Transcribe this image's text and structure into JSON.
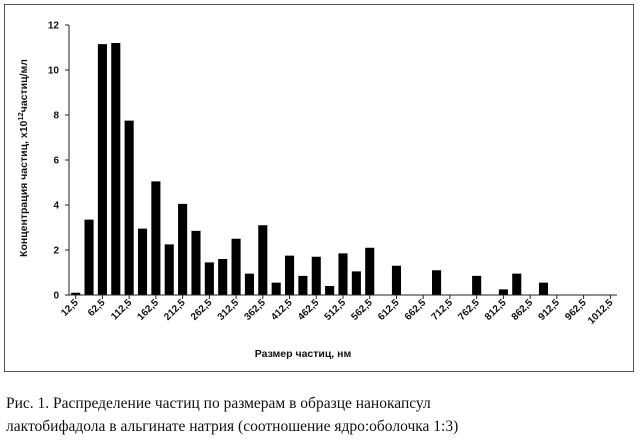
{
  "chart_data": {
    "type": "bar",
    "xlabel": "Размер частиц, нм",
    "ylabel_main": "Концентрация частиц, x10",
    "ylabel_sup": "12",
    "ylabel_end": "частиц/мл",
    "ylim": [
      0,
      12
    ],
    "yticks": [
      "0",
      "2",
      "4",
      "6",
      "8",
      "10",
      "12"
    ],
    "grid": false,
    "legend": "none",
    "bar_color": "#000000",
    "x_tick_labels": [
      "12,5",
      "62,5",
      "112,5",
      "162,5",
      "212,5",
      "262,5",
      "312,5",
      "362,5",
      "412,5",
      "462,5",
      "512,5",
      "562,5",
      "612,5",
      "662,5",
      "712,5",
      "762,5",
      "812,5",
      "862,5",
      "912,5",
      "962,5",
      "1012,5"
    ],
    "bin_width": 25,
    "x_start": 12.5,
    "bins": [
      {
        "x": 12.5,
        "y": 0.1
      },
      {
        "x": 37.5,
        "y": 3.35
      },
      {
        "x": 62.5,
        "y": 11.15
      },
      {
        "x": 87.5,
        "y": 11.2
      },
      {
        "x": 112.5,
        "y": 7.75
      },
      {
        "x": 137.5,
        "y": 2.95
      },
      {
        "x": 162.5,
        "y": 5.05
      },
      {
        "x": 187.5,
        "y": 2.25
      },
      {
        "x": 212.5,
        "y": 4.05
      },
      {
        "x": 237.5,
        "y": 2.85
      },
      {
        "x": 262.5,
        "y": 1.45
      },
      {
        "x": 287.5,
        "y": 1.6
      },
      {
        "x": 312.5,
        "y": 2.5
      },
      {
        "x": 337.5,
        "y": 0.95
      },
      {
        "x": 362.5,
        "y": 3.1
      },
      {
        "x": 387.5,
        "y": 0.55
      },
      {
        "x": 412.5,
        "y": 1.75
      },
      {
        "x": 437.5,
        "y": 0.85
      },
      {
        "x": 462.5,
        "y": 1.7
      },
      {
        "x": 487.5,
        "y": 0.4
      },
      {
        "x": 512.5,
        "y": 1.85
      },
      {
        "x": 537.5,
        "y": 1.05
      },
      {
        "x": 562.5,
        "y": 2.1
      },
      {
        "x": 587.5,
        "y": 0
      },
      {
        "x": 612.5,
        "y": 1.3
      },
      {
        "x": 637.5,
        "y": 0
      },
      {
        "x": 662.5,
        "y": 0
      },
      {
        "x": 687.5,
        "y": 1.1
      },
      {
        "x": 712.5,
        "y": 0
      },
      {
        "x": 737.5,
        "y": 0
      },
      {
        "x": 762.5,
        "y": 0.85
      },
      {
        "x": 787.5,
        "y": 0
      },
      {
        "x": 812.5,
        "y": 0.25
      },
      {
        "x": 837.5,
        "y": 0.95
      },
      {
        "x": 862.5,
        "y": 0
      },
      {
        "x": 887.5,
        "y": 0.55
      },
      {
        "x": 912.5,
        "y": 0
      },
      {
        "x": 937.5,
        "y": 0
      },
      {
        "x": 962.5,
        "y": 0
      },
      {
        "x": 987.5,
        "y": 0
      },
      {
        "x": 1012.5,
        "y": 0
      }
    ]
  },
  "caption": {
    "line1": "Рис. 1. Распределение частиц по размерам в образце нанокапсул",
    "line2": "лактобифадола в альгинате натрия (соотношение ядро:оболочка 1:3)"
  }
}
